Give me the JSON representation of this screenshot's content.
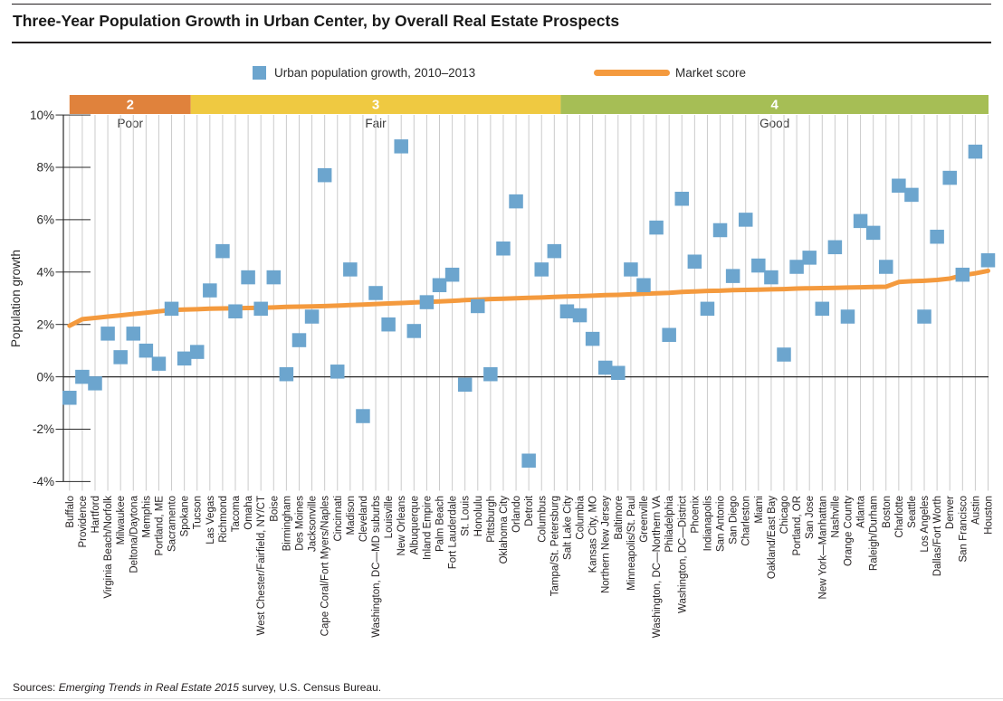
{
  "title": "Three-Year Population Growth in Urban Center, by Overall Real Estate Prospects",
  "legend": {
    "series1_label": "Urban population growth, 2010–2013",
    "series2_label": "Market score"
  },
  "source": {
    "prefix": "Sources: ",
    "italic": "Emerging Trends in Real Estate 2015",
    "suffix": " survey, U.S. Census Bureau."
  },
  "colors": {
    "square": "#6ca5ce",
    "line": "#f49a3e",
    "band_poor": "#e0823c",
    "band_fair": "#efc941",
    "band_good": "#a6be55",
    "gridline": "#cbcbcb",
    "axis": "#2a2a2a",
    "band_label_text": "#ffffff",
    "band_sublabel_text": "#3a3a3a"
  },
  "chart_data": {
    "type": "scatter",
    "title": "Three-Year Population Growth in Urban Center, by Overall Real Estate Prospects",
    "xlabel": "",
    "ylabel": "Population growth",
    "ylim": [
      -4,
      10
    ],
    "ytick_values": [
      10,
      8,
      6,
      4,
      2,
      0,
      -2,
      -4
    ],
    "grid": "vertical-per-category",
    "legend_position": "top",
    "categories": [
      "Buffalo",
      "Providence",
      "Hartford",
      "Virginia Beach/Norfolk",
      "Milwaukee",
      "Deltona/Daytona",
      "Memphis",
      "Portland, ME",
      "Sacramento",
      "Spokane",
      "Tucson",
      "Las Vegas",
      "Richmond",
      "Tacoma",
      "Omaha",
      "West Chester/Fairfield, NY/CT",
      "Boise",
      "Birmingham",
      "Des Moines",
      "Jacksonville",
      "Cape Coral/Fort Myers/Naples",
      "Cincinnati",
      "Madison",
      "Cleveland",
      "Washington, DC—MD suburbs",
      "Louisville",
      "New Orleans",
      "Albuquerque",
      "Inland Empire",
      "Palm Beach",
      "Fort Lauderdale",
      "St. Louis",
      "Honolulu",
      "Pittsburgh",
      "Oklahoma City",
      "Orlando",
      "Detroit",
      "Columbus",
      "Tampa/St. Petersburg",
      "Salt Lake City",
      "Columbia",
      "Kansas City, MO",
      "Northern New Jersey",
      "Baltimore",
      "Minneapolis/St. Paul",
      "Greenville",
      "Washington, DC—Northern VA",
      "Philadelphia",
      "Washington, DC—District",
      "Phoenix",
      "Indianapolis",
      "San Antonio",
      "San Diego",
      "Charleston",
      "Miami",
      "Oakland/East Bay",
      "Chicago",
      "Portland, OR",
      "San Jose",
      "New York—Manhattan",
      "Nashville",
      "Orange County",
      "Atlanta",
      "Raleigh/Durham",
      "Boston",
      "Charlotte",
      "Seattle",
      "Los Angeles",
      "Dallas/Fort Worth",
      "Denver",
      "San Francisco",
      "Austin",
      "Houston"
    ],
    "series": [
      {
        "name": "Urban population growth, 2010–2013",
        "type": "scatter_square",
        "unit": "%",
        "values": [
          -0.8,
          0.0,
          -0.25,
          1.65,
          0.75,
          1.65,
          1.0,
          0.5,
          2.6,
          0.7,
          0.95,
          3.3,
          4.8,
          2.5,
          3.8,
          2.6,
          3.8,
          0.1,
          1.4,
          2.3,
          7.7,
          0.2,
          4.1,
          -1.5,
          3.2,
          2.0,
          8.8,
          1.75,
          2.85,
          3.5,
          3.9,
          -0.3,
          2.7,
          0.1,
          4.9,
          6.7,
          -3.2,
          4.1,
          4.8,
          2.5,
          2.35,
          1.45,
          0.35,
          0.15,
          4.1,
          3.5,
          5.7,
          1.6,
          6.8,
          4.4,
          2.6,
          5.6,
          3.85,
          6.0,
          4.25,
          3.8,
          0.85,
          4.2,
          4.55,
          2.6,
          4.95,
          2.3,
          5.95,
          5.5,
          4.2,
          7.3,
          6.95,
          2.3,
          5.35,
          7.6,
          3.9,
          8.6,
          4.45
        ]
      },
      {
        "name": "Market score",
        "type": "line",
        "values": [
          1.95,
          2.2,
          2.25,
          2.3,
          2.35,
          2.4,
          2.45,
          2.5,
          2.55,
          2.57,
          2.58,
          2.6,
          2.61,
          2.62,
          2.63,
          2.64,
          2.65,
          2.67,
          2.68,
          2.69,
          2.7,
          2.72,
          2.74,
          2.76,
          2.78,
          2.8,
          2.82,
          2.84,
          2.86,
          2.88,
          2.9,
          2.93,
          2.95,
          2.97,
          2.98,
          3.0,
          3.02,
          3.03,
          3.05,
          3.07,
          3.08,
          3.1,
          3.12,
          3.13,
          3.15,
          3.17,
          3.19,
          3.21,
          3.24,
          3.26,
          3.28,
          3.29,
          3.31,
          3.32,
          3.33,
          3.34,
          3.35,
          3.37,
          3.38,
          3.39,
          3.4,
          3.41,
          3.42,
          3.43,
          3.44,
          3.62,
          3.65,
          3.67,
          3.7,
          3.75,
          3.88,
          3.95,
          4.05
        ]
      }
    ],
    "bands": [
      {
        "score": "2",
        "label": "Poor",
        "color_key": "band_poor",
        "from_index": 0,
        "to_index": 9
      },
      {
        "score": "3",
        "label": "Fair",
        "color_key": "band_fair",
        "from_index": 10,
        "to_index": 38
      },
      {
        "score": "4",
        "label": "Good",
        "color_key": "band_good",
        "from_index": 39,
        "to_index": 72
      }
    ]
  }
}
